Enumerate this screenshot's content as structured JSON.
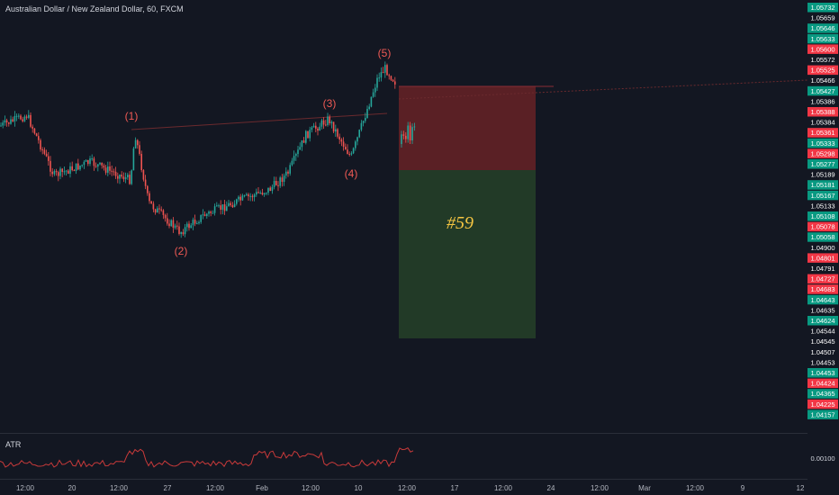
{
  "header": {
    "symbol_title": "Australian Dollar / New Zealand Dollar, 60, FXCM"
  },
  "indicator": {
    "label": "ATR",
    "value_label": "0.00100"
  },
  "waves": [
    "(1)",
    "(2)",
    "(3)",
    "(4)",
    "(5)"
  ],
  "trade": {
    "label": "#59",
    "stop_color": "#5a2025",
    "target_color": "#223a27"
  },
  "price_axis": {
    "ticks": [
      {
        "v": "1.05732",
        "c": "green"
      },
      {
        "v": "1.05659",
        "c": "gray"
      },
      {
        "v": "1.05646",
        "c": "green"
      },
      {
        "v": "1.05633",
        "c": "green"
      },
      {
        "v": "1.05600",
        "c": "red"
      },
      {
        "v": "1.05572",
        "c": "gray"
      },
      {
        "v": "1.05525",
        "c": "red"
      },
      {
        "v": "1.05466",
        "c": "gray"
      },
      {
        "v": "1.05427",
        "c": "green"
      },
      {
        "v": "1.05386",
        "c": "gray"
      },
      {
        "v": "1.05388",
        "c": "red"
      },
      {
        "v": "1.05384",
        "c": "gray"
      },
      {
        "v": "1.05361",
        "c": "red"
      },
      {
        "v": "1.05333",
        "c": "green"
      },
      {
        "v": "1.05298",
        "c": "red"
      },
      {
        "v": "1.05277",
        "c": "green"
      },
      {
        "v": "1.05189",
        "c": "gray"
      },
      {
        "v": "1.05181",
        "c": "green"
      },
      {
        "v": "1.05167",
        "c": "green"
      },
      {
        "v": "1.05133",
        "c": "gray"
      },
      {
        "v": "1.05108",
        "c": "green"
      },
      {
        "v": "1.05078",
        "c": "red"
      },
      {
        "v": "1.05058",
        "c": "green"
      },
      {
        "v": "1.04900",
        "c": "gray"
      },
      {
        "v": "1.04801",
        "c": "red"
      },
      {
        "v": "1.04791",
        "c": "gray"
      },
      {
        "v": "1.04727",
        "c": "red"
      },
      {
        "v": "1.04683",
        "c": "red"
      },
      {
        "v": "1.04643",
        "c": "green"
      },
      {
        "v": "1.04635",
        "c": "gray"
      },
      {
        "v": "1.04624",
        "c": "green"
      },
      {
        "v": "1.04544",
        "c": "gray"
      },
      {
        "v": "1.04545",
        "c": "gray"
      },
      {
        "v": "1.04507",
        "c": "gray"
      },
      {
        "v": "1.04453",
        "c": "gray"
      },
      {
        "v": "1.04453",
        "c": "green"
      },
      {
        "v": "1.04424",
        "c": "red"
      },
      {
        "v": "1.04365",
        "c": "green"
      },
      {
        "v": "1.04225",
        "c": "red"
      },
      {
        "v": "1.04157",
        "c": "green"
      }
    ]
  },
  "time_axis": [
    "12:00",
    "20",
    "12:00",
    "27",
    "12:00",
    "Feb",
    "12:00",
    "10",
    "12:00",
    "17",
    "12:00",
    "24",
    "12:00",
    "Mar",
    "12:00",
    "9",
    "12"
  ],
  "colors": {
    "up": "#26a69a",
    "down": "#ef5350",
    "tick_green": "#089981",
    "tick_red": "#f23645",
    "tick_gray": "#5d606b",
    "accent_yellow": "#f5c542"
  }
}
